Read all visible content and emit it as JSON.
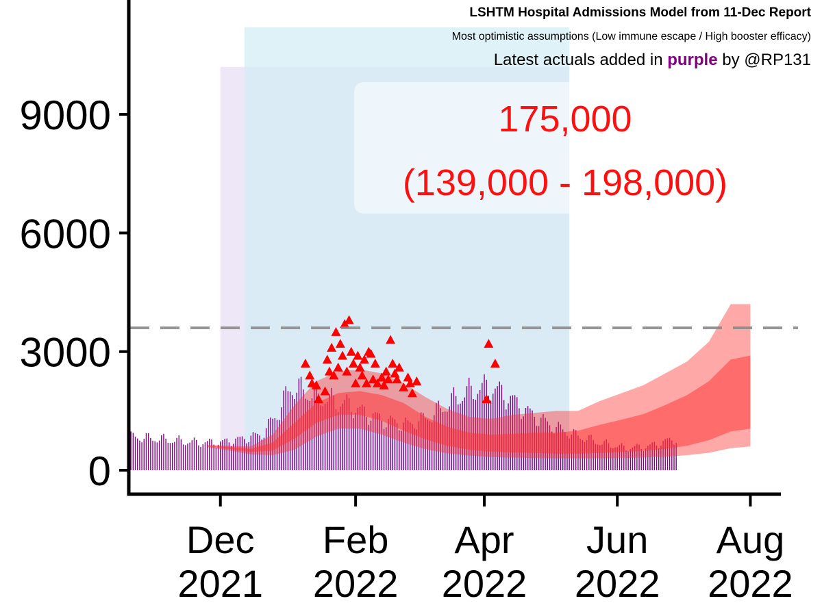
{
  "chart_data": {
    "type": "area",
    "title": "LSHTM Hospital Admissions Model from 11-Dec Report",
    "subtitle": "Most optimistic assumptions (Low immune escape / High booster efficacy)",
    "note": {
      "prefix": "Latest actuals added in",
      "highlight": "purple",
      "suffix": "by @RP131"
    },
    "annotation": {
      "total": "175,000",
      "range": "(139,000 - 198,000)"
    },
    "y_ticks": [
      "0",
      "3000",
      "6000",
      "9000"
    ],
    "x_ticks": [
      {
        "month": "Dec",
        "year": "2021",
        "date": "2021-12-01"
      },
      {
        "month": "Feb",
        "year": "2022",
        "date": "2022-02-01"
      },
      {
        "month": "Apr",
        "year": "2022",
        "date": "2022-04-01"
      },
      {
        "month": "Jun",
        "year": "2022",
        "date": "2022-06-01"
      },
      {
        "month": "Aug",
        "year": "2022",
        "date": "2022-08-01"
      }
    ],
    "ylim": [
      0,
      11500
    ],
    "xlim": [
      "2021-10-20",
      "2022-08-15"
    ],
    "reference_line": 3600,
    "shaded_periods": [
      {
        "start": "2021-12-01",
        "end": "2022-05-10",
        "top": 10200,
        "color": "#e6ddf3"
      },
      {
        "start": "2021-12-12",
        "end": "2022-05-10",
        "top": 11200,
        "color": "#d2ecf4"
      }
    ],
    "model_bands": {
      "color": "#ff3030",
      "dates": [
        "2021-11-25",
        "2021-12-05",
        "2021-12-15",
        "2021-12-25",
        "2022-01-04",
        "2022-01-14",
        "2022-01-24",
        "2022-02-03",
        "2022-02-13",
        "2022-02-23",
        "2022-03-05",
        "2022-03-15",
        "2022-03-25",
        "2022-04-04",
        "2022-04-14",
        "2022-04-24",
        "2022-05-04",
        "2022-05-14",
        "2022-05-24",
        "2022-06-03",
        "2022-06-13",
        "2022-06-23",
        "2022-07-03",
        "2022-07-13",
        "2022-07-23",
        "2022-08-01"
      ],
      "outer_low": [
        580,
        500,
        400,
        380,
        520,
        850,
        1050,
        1050,
        900,
        700,
        530,
        430,
        370,
        330,
        320,
        310,
        300,
        300,
        300,
        310,
        320,
        340,
        380,
        440,
        560,
        600
      ],
      "outer_high": [
        640,
        620,
        600,
        900,
        1650,
        2250,
        2500,
        2550,
        2450,
        2200,
        1850,
        1550,
        1350,
        1300,
        1400,
        1450,
        1500,
        1500,
        1750,
        1950,
        2150,
        2450,
        2750,
        3250,
        4200,
        4200
      ],
      "inner_low": [
        600,
        540,
        460,
        500,
        800,
        1200,
        1400,
        1400,
        1250,
        1000,
        780,
        620,
        520,
        470,
        450,
        440,
        420,
        420,
        440,
        460,
        490,
        540,
        620,
        760,
        980,
        1050
      ],
      "inner_high": [
        620,
        590,
        540,
        700,
        1200,
        1700,
        1950,
        2000,
        1900,
        1700,
        1350,
        1100,
        950,
        900,
        920,
        950,
        950,
        1000,
        1150,
        1280,
        1420,
        1650,
        1900,
        2250,
        2800,
        2900
      ]
    },
    "actuals_triangles": {
      "color": "#ff0000",
      "points": [
        {
          "date": "2022-01-09",
          "value": 2700
        },
        {
          "date": "2022-01-11",
          "value": 2400
        },
        {
          "date": "2022-01-12",
          "value": 2200
        },
        {
          "date": "2022-01-14",
          "value": 2150
        },
        {
          "date": "2022-01-15",
          "value": 1800
        },
        {
          "date": "2022-01-18",
          "value": 2000
        },
        {
          "date": "2022-01-19",
          "value": 2800
        },
        {
          "date": "2022-01-20",
          "value": 2500
        },
        {
          "date": "2022-01-21",
          "value": 3100
        },
        {
          "date": "2022-01-22",
          "value": 2400
        },
        {
          "date": "2022-01-23",
          "value": 3500
        },
        {
          "date": "2022-01-24",
          "value": 2600
        },
        {
          "date": "2022-01-25",
          "value": 3200
        },
        {
          "date": "2022-01-26",
          "value": 2900
        },
        {
          "date": "2022-01-27",
          "value": 3700
        },
        {
          "date": "2022-01-28",
          "value": 2500
        },
        {
          "date": "2022-01-29",
          "value": 3800
        },
        {
          "date": "2022-01-30",
          "value": 3000
        },
        {
          "date": "2022-01-31",
          "value": 2700
        },
        {
          "date": "2022-02-01",
          "value": 2200
        },
        {
          "date": "2022-02-02",
          "value": 2900
        },
        {
          "date": "2022-02-03",
          "value": 2600
        },
        {
          "date": "2022-02-04",
          "value": 2400
        },
        {
          "date": "2022-02-05",
          "value": 2800
        },
        {
          "date": "2022-02-06",
          "value": 2200
        },
        {
          "date": "2022-02-07",
          "value": 3000
        },
        {
          "date": "2022-02-08",
          "value": 2950
        },
        {
          "date": "2022-02-09",
          "value": 2300
        },
        {
          "date": "2022-02-10",
          "value": 2700
        },
        {
          "date": "2022-02-11",
          "value": 2200
        },
        {
          "date": "2022-02-13",
          "value": 2350
        },
        {
          "date": "2022-02-14",
          "value": 2150
        },
        {
          "date": "2022-02-15",
          "value": 2500
        },
        {
          "date": "2022-02-16",
          "value": 2300
        },
        {
          "date": "2022-02-17",
          "value": 3300
        },
        {
          "date": "2022-02-18",
          "value": 2700
        },
        {
          "date": "2022-02-19",
          "value": 2450
        },
        {
          "date": "2022-02-20",
          "value": 2300
        },
        {
          "date": "2022-02-21",
          "value": 2600
        },
        {
          "date": "2022-02-23",
          "value": 2100
        },
        {
          "date": "2022-02-25",
          "value": 2350
        },
        {
          "date": "2022-02-26",
          "value": 2200
        },
        {
          "date": "2022-02-27",
          "value": 1950
        },
        {
          "date": "2022-03-01",
          "value": 2250
        },
        {
          "date": "2022-04-02",
          "value": 1800
        },
        {
          "date": "2022-04-03",
          "value": 3200
        },
        {
          "date": "2022-04-06",
          "value": 2700
        }
      ]
    },
    "actuals_daily": {
      "color": "#800080",
      "start": "2021-10-20",
      "end": "2022-06-28",
      "anchors": [
        {
          "date": "2021-10-20",
          "value": 850
        },
        {
          "date": "2021-11-05",
          "value": 780
        },
        {
          "date": "2021-11-20",
          "value": 700
        },
        {
          "date": "2021-12-01",
          "value": 700
        },
        {
          "date": "2021-12-10",
          "value": 780
        },
        {
          "date": "2021-12-20",
          "value": 900
        },
        {
          "date": "2021-12-28",
          "value": 1500
        },
        {
          "date": "2022-01-02",
          "value": 2100
        },
        {
          "date": "2022-01-08",
          "value": 2000
        },
        {
          "date": "2022-01-15",
          "value": 1850
        },
        {
          "date": "2022-01-22",
          "value": 1750
        },
        {
          "date": "2022-01-29",
          "value": 1650
        },
        {
          "date": "2022-02-05",
          "value": 1450
        },
        {
          "date": "2022-02-15",
          "value": 1250
        },
        {
          "date": "2022-02-25",
          "value": 1150
        },
        {
          "date": "2022-03-05",
          "value": 1300
        },
        {
          "date": "2022-03-12",
          "value": 1550
        },
        {
          "date": "2022-03-20",
          "value": 1850
        },
        {
          "date": "2022-03-28",
          "value": 2050
        },
        {
          "date": "2022-04-04",
          "value": 2100
        },
        {
          "date": "2022-04-12",
          "value": 1850
        },
        {
          "date": "2022-04-20",
          "value": 1500
        },
        {
          "date": "2022-05-01",
          "value": 1150
        },
        {
          "date": "2022-05-12",
          "value": 900
        },
        {
          "date": "2022-05-25",
          "value": 680
        },
        {
          "date": "2022-06-05",
          "value": 560
        },
        {
          "date": "2022-06-15",
          "value": 600
        },
        {
          "date": "2022-06-28",
          "value": 800
        }
      ]
    }
  }
}
